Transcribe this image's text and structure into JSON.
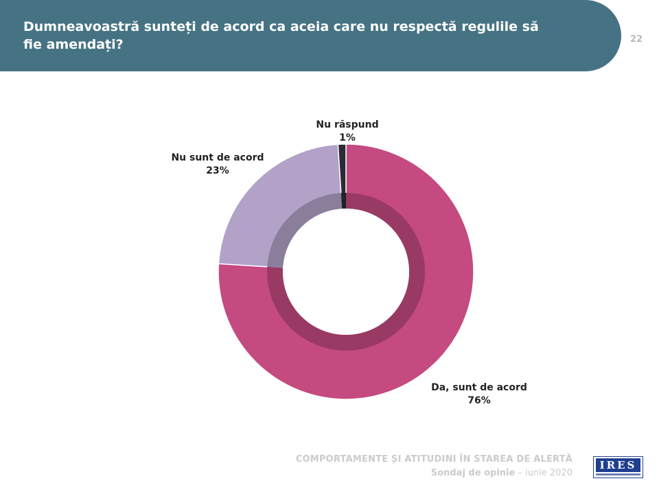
{
  "header": {
    "title": "Dumneavoastră sunteți de acord ca aceia care nu respectă regulile să fie amendați?",
    "page_number": "22"
  },
  "chart_data": {
    "type": "pie",
    "donut": true,
    "categories": [
      "Da, sunt de acord",
      "Nu sunt de acord",
      "Nu răspund"
    ],
    "values": [
      76,
      23,
      1
    ],
    "labels": [
      "76%",
      "23%",
      "1%"
    ],
    "colors": [
      "#c44a80",
      "#b2a2c8",
      "#2b2b35"
    ]
  },
  "footer": {
    "title": "COMPORTAMENTE ȘI ATITUDINI ÎN STAREA DE ALERTĂ",
    "subtitle_bold": "Sondaj  de opinie",
    "subtitle_rest": " – iunie 2020",
    "logo_text": "IRES"
  }
}
